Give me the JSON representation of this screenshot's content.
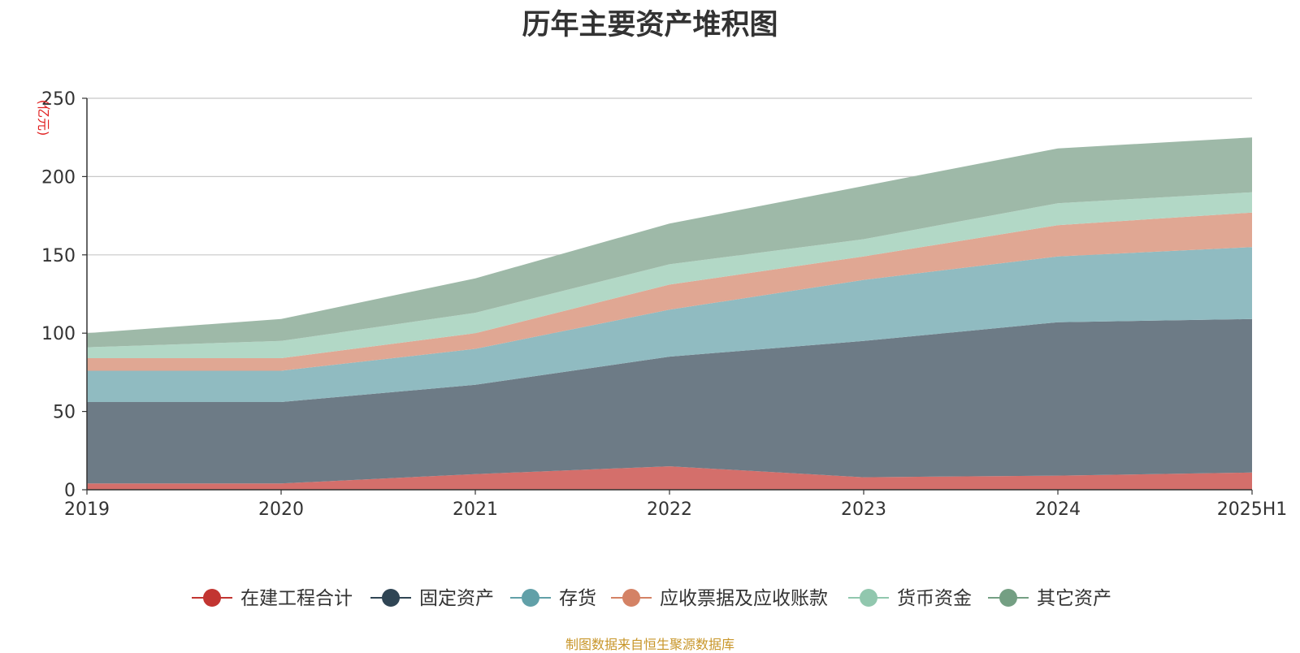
{
  "chart_data": {
    "type": "area",
    "stacked": true,
    "title": "历年主要资产堆积图",
    "ylabel": "(亿元)",
    "xlabel": "",
    "categories": [
      "2019",
      "2020",
      "2021",
      "2022",
      "2023",
      "2024",
      "2025H1"
    ],
    "ylim": [
      0,
      250
    ],
    "yticks": [
      0,
      50,
      100,
      150,
      200,
      250
    ],
    "grid": true,
    "legend_position": "bottom",
    "series": [
      {
        "name": "在建工程合计",
        "color": "#c23531",
        "fill": "#d46f6b",
        "values": [
          4,
          4,
          10,
          15,
          8,
          9,
          11
        ]
      },
      {
        "name": "固定资产",
        "color": "#2f4554",
        "fill": "#6d7b86",
        "values": [
          52,
          52,
          57,
          70,
          87,
          98,
          98
        ]
      },
      {
        "name": "存货",
        "color": "#61a0a8",
        "fill": "#90bbc1",
        "values": [
          20,
          20,
          23,
          30,
          39,
          42,
          46
        ]
      },
      {
        "name": "应收票据及应收账款",
        "color": "#d48265",
        "fill": "#e0a793",
        "values": [
          8,
          8,
          10,
          16,
          15,
          20,
          22
        ]
      },
      {
        "name": "货币资金",
        "color": "#91c7ae",
        "fill": "#b2d8c6",
        "values": [
          7,
          11,
          13,
          13,
          11,
          14,
          13
        ]
      },
      {
        "name": "其它资产",
        "color": "#749f83",
        "fill": "#9eb9a8",
        "values": [
          9,
          14,
          22,
          26,
          34,
          35,
          35
        ]
      }
    ]
  },
  "source_note": "制图数据来自恒生聚源数据库"
}
